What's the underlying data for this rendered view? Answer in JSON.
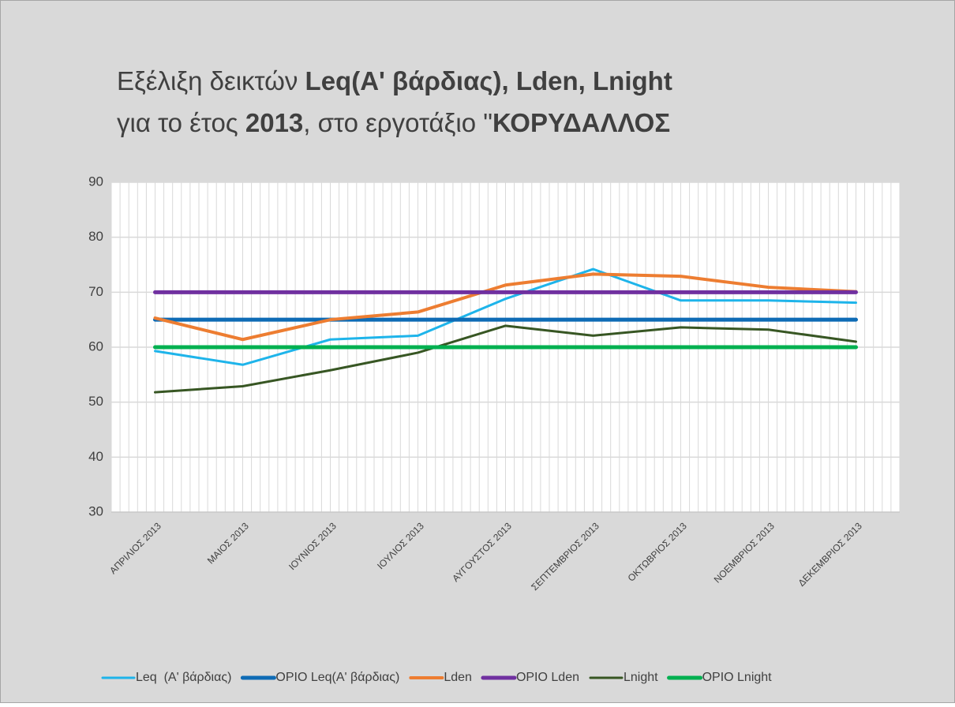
{
  "chart_data": {
    "type": "line",
    "title": [
      [
        {
          "text": "Εξέλιξη δεικτών ",
          "bold": false
        },
        {
          "text": "Leq(Α' βάρδιας), Lden, Lnight",
          "bold": true
        }
      ],
      [
        {
          "text": "για το έτος ",
          "bold": false
        },
        {
          "text": "2013",
          "bold": true
        },
        {
          "text": ", στο εργοτάξιο \"",
          "bold": false
        },
        {
          "text": "ΚΟΡΥΔΑΛΛΟΣ",
          "bold": true
        }
      ]
    ],
    "categories": [
      "ΑΠΡΙΛΙΟΣ 2013",
      "ΜΑΙΟΣ 2013",
      "ΙΟΥΝΙΟΣ 2013",
      "ΙΟΥΛΙΟΣ 2013",
      "ΑΥΓΟΥΣΤΟΣ 2013",
      "ΣΕΠΤΕΜΒΡΙΟΣ 2013",
      "ΟΚΤΩΒΡΙΟΣ 2013",
      "ΝΟΕΜΒΡΙΟΣ 2013",
      "ΔΕΚΕΜΒΡΙΟΣ 2013"
    ],
    "series": [
      {
        "name": "Leq  (Α' βάρδιας)",
        "color": "#1eb4ea",
        "line_width": 3,
        "values": [
          59.3,
          56.8,
          61.4,
          62.1,
          68.8,
          74.2,
          68.5,
          68.5,
          68.1
        ]
      },
      {
        "name": "ΟΡΙΟ Leq(Α' βάρδιας)",
        "color": "#0e6bb5",
        "line_width": 5,
        "values": [
          65,
          65,
          65,
          65,
          65,
          65,
          65,
          65,
          65
        ]
      },
      {
        "name": "Lden",
        "color": "#ed7d31",
        "line_width": 4,
        "values": [
          65.3,
          61.4,
          65,
          66.4,
          71.3,
          73.3,
          72.9,
          70.9,
          70.1
        ]
      },
      {
        "name": "ΟΡΙΟ Lden",
        "color": "#7030a0",
        "line_width": 5,
        "values": [
          70,
          70,
          70,
          70,
          70,
          70,
          70,
          70,
          70
        ]
      },
      {
        "name": "Lnight",
        "color": "#375623",
        "line_width": 3,
        "values": [
          51.8,
          52.9,
          55.8,
          59,
          63.9,
          62.1,
          63.6,
          63.2,
          61
        ]
      },
      {
        "name": "ΟΡΙΟ Lnight",
        "color": "#00b050",
        "line_width": 5,
        "values": [
          60,
          60,
          60,
          60,
          60,
          60,
          60,
          60,
          60
        ]
      }
    ],
    "ylim": [
      30,
      90
    ],
    "yticks": [
      30,
      40,
      50,
      60,
      70,
      80,
      90
    ],
    "grid": true,
    "legend": "bottom"
  }
}
